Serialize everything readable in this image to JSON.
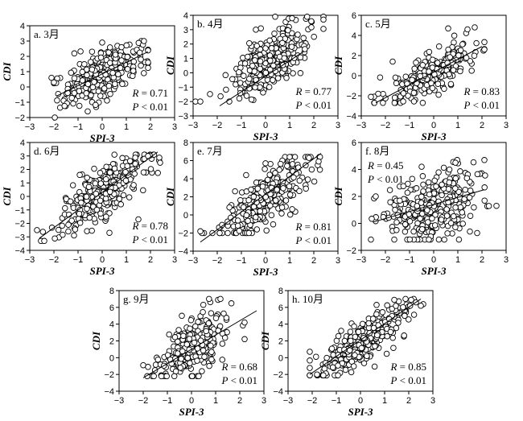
{
  "chart_data": [
    {
      "type": "scatter",
      "title": "a. 3月",
      "xlabel": "SPI-3",
      "ylabel": "CDI",
      "xlim": [
        -3,
        3
      ],
      "ylim": [
        -2,
        4
      ],
      "xticks": [
        -3,
        -2,
        -1,
        0,
        1,
        2,
        3
      ],
      "yticks": [
        -2,
        -1,
        0,
        1,
        2,
        3,
        4
      ],
      "r_text": "R = 0.71",
      "p_text": "P < 0.01",
      "stats_position": "bottom-right",
      "fit_line": {
        "x": [
          -1.9,
          1.9
        ],
        "y": [
          -0.6,
          2.3
        ]
      },
      "points": {
        "x_mean": 0.0,
        "x_sd": 0.8,
        "x_range": [
          -2.1,
          1.9
        ],
        "y_min": -2,
        "y_max": 3,
        "slope": 0.76,
        "intercept": 0.85,
        "noise": 0.75,
        "n": 300
      },
      "sample_points": {
        "x": [
          -2.1,
          -2.0,
          -0.6,
          0.0,
          0.8,
          1.6,
          1.9
        ],
        "y": [
          0.6,
          0.3,
          -1.6,
          2.9,
          2.6,
          1.8,
          1.6
        ]
      }
    },
    {
      "type": "scatter",
      "title": "b. 4月",
      "xlabel": "SPI-3",
      "ylabel": "CDI",
      "xlim": [
        -3,
        3
      ],
      "ylim": [
        -3,
        4
      ],
      "xticks": [
        -3,
        -2,
        -1,
        0,
        1,
        2,
        3
      ],
      "yticks": [
        -3,
        -2,
        -1,
        0,
        1,
        2,
        3,
        4
      ],
      "r_text": "R = 0.77",
      "p_text": "P < 0.01",
      "stats_position": "bottom-right",
      "fit_line": {
        "x": [
          -1.9,
          1.6
        ],
        "y": [
          -2.3,
          1.5
        ]
      },
      "points": {
        "x_mean": 0.2,
        "x_sd": 0.85,
        "x_range": [
          -2.9,
          2.4
        ],
        "y_min": -2.5,
        "y_max": 3.9,
        "slope": 1.1,
        "intercept": 0.6,
        "noise": 0.95,
        "n": 300
      },
      "sample_points": {
        "x": [
          -2.9,
          -2.7,
          -1.5,
          -0.4,
          0.4,
          1.1,
          2.4
        ],
        "y": [
          -2.0,
          -2.0,
          -2.0,
          3.0,
          3.9,
          3.8,
          3.7
        ]
      }
    },
    {
      "type": "scatter",
      "title": "c. 5月",
      "xlabel": "SPI-3",
      "ylabel": "CDI",
      "xlim": [
        -3,
        3
      ],
      "ylim": [
        -4,
        6
      ],
      "xticks": [
        -3,
        -2,
        -1,
        0,
        1,
        2,
        3
      ],
      "yticks": [
        -4,
        -2,
        0,
        2,
        4,
        6
      ],
      "r_text": "R = 0.83",
      "p_text": "P < 0.01",
      "stats_position": "bottom-right",
      "fit_line": {
        "x": [
          -2.4,
          2.0
        ],
        "y": [
          -2.7,
          2.9
        ]
      },
      "points": {
        "x_mean": 0.0,
        "x_sd": 0.85,
        "x_range": [
          -2.6,
          2.1
        ],
        "y_min": -2.7,
        "y_max": 4.8,
        "slope": 1.27,
        "intercept": 0.3,
        "noise": 0.9,
        "n": 260
      },
      "sample_points": {
        "x": [
          -2.6,
          -2.3,
          -1.7,
          0.6,
          1.4,
          1.7,
          2.1
        ],
        "y": [
          -2.1,
          -1.8,
          1.4,
          4.7,
          4.6,
          4.8,
          2.6
        ]
      }
    },
    {
      "type": "scatter",
      "title": "d. 6月",
      "xlabel": "SPI-3",
      "ylabel": "CDI",
      "xlim": [
        -3,
        3
      ],
      "ylim": [
        -4,
        4
      ],
      "xticks": [
        -3,
        -2,
        -1,
        0,
        1,
        2,
        3
      ],
      "yticks": [
        -4,
        -3,
        -2,
        -1,
        0,
        1,
        2,
        3,
        4
      ],
      "r_text": "R = 0.78",
      "p_text": "P < 0.01",
      "stats_position": "bottom-right",
      "fit_line": {
        "x": [
          -2.6,
          2.3
        ],
        "y": [
          -3.1,
          3.3
        ]
      },
      "points": {
        "x_mean": 0.0,
        "x_sd": 0.95,
        "x_range": [
          -2.7,
          2.4
        ],
        "y_min": -3.3,
        "y_max": 3.1,
        "slope": 1.3,
        "intercept": 0.3,
        "noise": 0.95,
        "n": 300
      },
      "sample_points": {
        "x": [
          -2.7,
          -2.4,
          -1.4,
          0.3,
          1.5,
          1.9,
          2.4
        ],
        "y": [
          -2.5,
          -3.3,
          -2.1,
          -2.7,
          -1.7,
          3.0,
          2.5
        ]
      }
    },
    {
      "type": "scatter",
      "title": "e. 7月",
      "xlabel": "SPI-3",
      "ylabel": "CDI",
      "xlim": [
        -3,
        3
      ],
      "ylim": [
        -4,
        8
      ],
      "xticks": [
        -3,
        -2,
        -1,
        0,
        1,
        2,
        3
      ],
      "yticks": [
        -4,
        -2,
        0,
        2,
        4,
        6,
        8
      ],
      "r_text": "R = 0.81",
      "p_text": "P < 0.01",
      "stats_position": "bottom-right",
      "fit_line": {
        "x": [
          -2.7,
          2.3
        ],
        "y": [
          -3.0,
          6.8
        ]
      },
      "points": {
        "x_mean": 0.0,
        "x_sd": 0.9,
        "x_range": [
          -2.7,
          2.3
        ],
        "y_min": -2.0,
        "y_max": 6.4,
        "slope": 1.95,
        "intercept": 1.7,
        "noise": 1.5,
        "n": 300
      },
      "sample_points": {
        "x": [
          -2.7,
          -1.8,
          -0.6,
          0.0,
          1.0,
          1.8,
          2.2
        ],
        "y": [
          -1.8,
          -1.1,
          2.8,
          5.7,
          6.4,
          6.3,
          5.9
        ]
      }
    },
    {
      "type": "scatter",
      "title": "f. 8月",
      "xlabel": "SPI-3",
      "ylabel": "CDI",
      "xlim": [
        -3,
        3
      ],
      "ylim": [
        -2,
        6
      ],
      "xticks": [
        -3,
        -2,
        -1,
        0,
        1,
        2,
        3
      ],
      "yticks": [
        -2,
        0,
        2,
        4,
        6
      ],
      "r_text": "R = 0.45",
      "p_text": "P < 0.01",
      "stats_position": "top-left",
      "fit_line": {
        "x": [
          -2.5,
          2.1
        ],
        "y": [
          0.1,
          2.5
        ]
      },
      "points": {
        "x_mean": 0.0,
        "x_sd": 1.0,
        "x_range": [
          -2.6,
          2.6
        ],
        "y_min": -1.2,
        "y_max": 4.7,
        "slope": 0.5,
        "intercept": 1.3,
        "noise": 1.25,
        "n": 300
      },
      "sample_points": {
        "x": [
          -2.4,
          -0.5,
          -0.2,
          0.9,
          1.5,
          2.1,
          2.6
        ],
        "y": [
          2.0,
          4.2,
          -1.2,
          4.5,
          -0.6,
          4.7,
          1.3
        ]
      }
    },
    {
      "type": "scatter",
      "title": "g. 9月",
      "xlabel": "SPI-3",
      "ylabel": "CDI",
      "xlim": [
        -3,
        3
      ],
      "ylim": [
        -4,
        8
      ],
      "xticks": [
        -3,
        -2,
        -1,
        0,
        1,
        2,
        3
      ],
      "yticks": [
        -4,
        -2,
        0,
        2,
        4,
        6,
        8
      ],
      "r_text": "R = 0.68",
      "p_text": "P < 0.01",
      "stats_position": "bottom-right",
      "fit_line": {
        "x": [
          -2.0,
          2.7
        ],
        "y": [
          -2.4,
          5.6
        ]
      },
      "points": {
        "x_mean": 0.05,
        "x_sd": 0.8,
        "x_range": [
          -2.0,
          2.2
        ],
        "y_min": -2.2,
        "y_max": 7.0,
        "slope": 1.7,
        "intercept": 1.0,
        "noise": 1.6,
        "n": 260
      },
      "sample_points": {
        "x": [
          -2.0,
          -1.8,
          -0.4,
          0.3,
          1.1,
          1.2,
          2.2
        ],
        "y": [
          -0.9,
          -1.1,
          5.0,
          -2.2,
          6.9,
          7.0,
          4.2
        ]
      }
    },
    {
      "type": "scatter",
      "title": "h. 10月",
      "xlabel": "SPI-3",
      "ylabel": "CDI",
      "xlim": [
        -3,
        3
      ],
      "ylim": [
        -4,
        8
      ],
      "xticks": [
        -3,
        -2,
        -1,
        0,
        1,
        2,
        3
      ],
      "yticks": [
        -4,
        -2,
        0,
        2,
        4,
        6,
        8
      ],
      "r_text": "R = 0.85",
      "p_text": "P < 0.01",
      "stats_position": "bottom-right",
      "fit_line": {
        "x": [
          -2.1,
          2.5
        ],
        "y": [
          -2.0,
          7.0
        ]
      },
      "points": {
        "x_mean": 0.1,
        "x_sd": 0.95,
        "x_range": [
          -2.1,
          2.6
        ],
        "y_min": -2.1,
        "y_max": 7.0,
        "slope": 1.95,
        "intercept": 1.6,
        "noise": 1.2,
        "n": 300
      },
      "sample_points": {
        "x": [
          -2.1,
          -1.8,
          -0.8,
          1.4,
          2.1,
          2.3,
          2.5
        ],
        "y": [
          0.7,
          -2.0,
          3.2,
          6.9,
          6.9,
          6.6,
          6.2
        ]
      }
    }
  ]
}
